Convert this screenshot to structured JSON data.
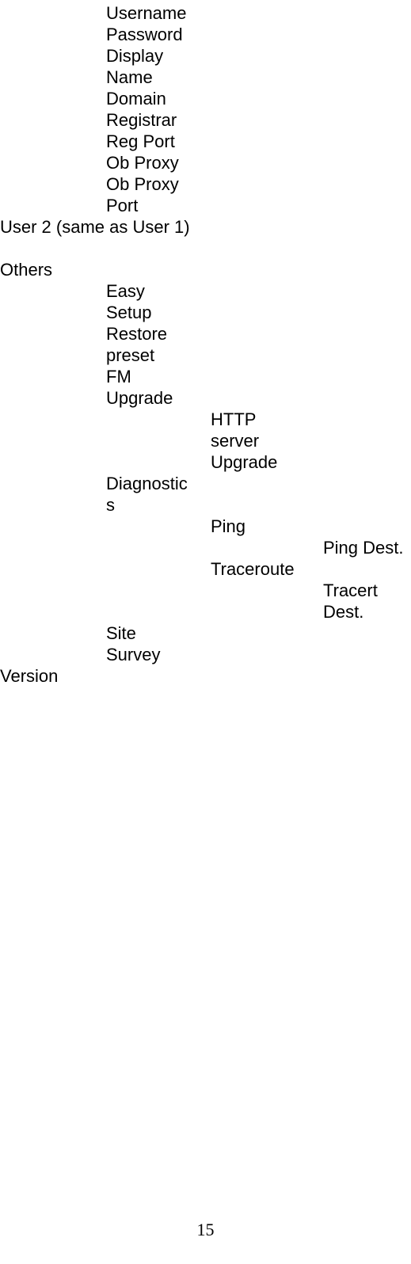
{
  "user_fields": {
    "username": "Username",
    "password": "Password",
    "display": "Display",
    "name": "Name",
    "domain": "Domain",
    "registrar": "Registrar",
    "reg_port": "Reg Port",
    "ob_proxy": "Ob Proxy",
    "ob_proxy_line2": "Ob Proxy",
    "port": "Port"
  },
  "user2_heading": "User 2 (same as User 1)",
  "others_heading": "Others",
  "others": {
    "easy": "Easy",
    "setup": "Setup",
    "restore": "Restore",
    "preset": "preset",
    "fm": "FM",
    "upgrade": "Upgrade",
    "http": "HTTP",
    "server": "server",
    "upgrade_sub": "Upgrade",
    "diagnostic": "Diagnostic",
    "s": "s",
    "ping": "Ping",
    "ping_dest": "Ping Dest.",
    "traceroute": "Traceroute",
    "tracert": "Tracert",
    "dest": "Dest.",
    "site": "Site",
    "survey": "Survey"
  },
  "version_heading": "Version",
  "page_number": "15"
}
